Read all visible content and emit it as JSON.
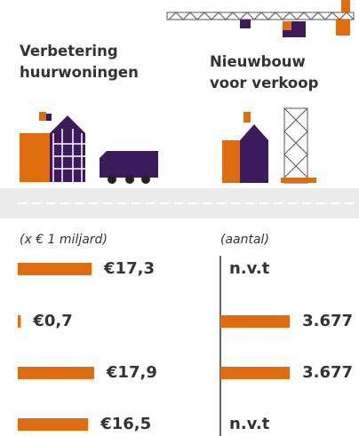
{
  "chart_data": [
    {
      "type": "bar",
      "orientation": "horizontal",
      "title": "Verbetering huurwoningen",
      "subtitle": "(x € 1 miljard)",
      "categories": [
        null,
        null,
        null,
        null
      ],
      "values": [
        17.3,
        0.7,
        17.9,
        16.5
      ],
      "value_labels": [
        "€17,3",
        "€0,7",
        "€17,9",
        "€16,5"
      ],
      "color": "#e06c10",
      "xlim": [
        0,
        40
      ]
    },
    {
      "type": "bar",
      "orientation": "horizontal",
      "title": "Nieuwbouw voor verkoop",
      "subtitle": "(aantal)",
      "categories": [
        null,
        null,
        null,
        null
      ],
      "values": [
        null,
        3677,
        3677,
        null
      ],
      "value_labels": [
        "n.v.t",
        "3.677",
        "3.677",
        "n.v.t"
      ],
      "color": "#e06c10",
      "xlim": [
        0,
        8000
      ]
    }
  ]
}
